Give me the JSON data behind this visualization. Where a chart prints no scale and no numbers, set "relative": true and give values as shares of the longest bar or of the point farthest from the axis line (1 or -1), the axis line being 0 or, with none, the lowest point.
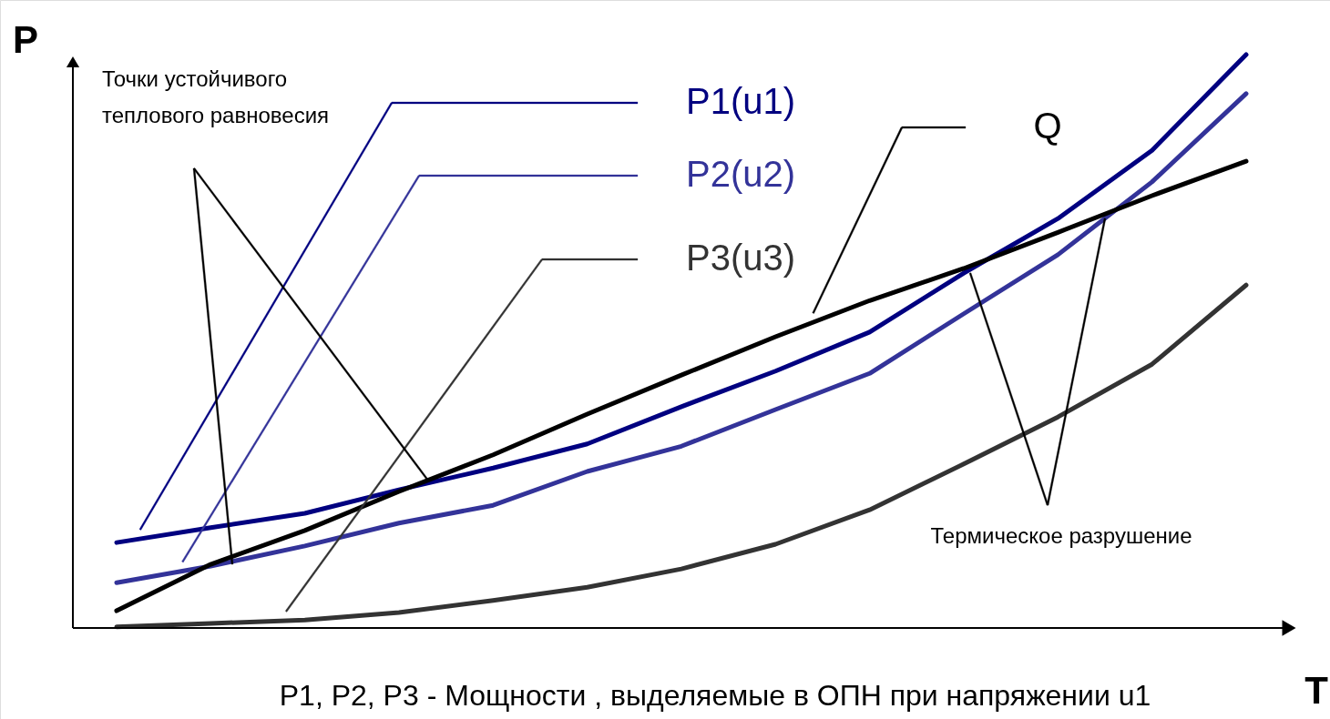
{
  "chart_data": {
    "type": "line",
    "relative": true,
    "xlabel": "T",
    "ylabel": "P",
    "legend": "top",
    "categories": [
      null,
      null,
      null,
      null,
      null,
      null,
      null,
      null,
      null,
      null,
      null,
      null,
      null
    ],
    "series": [
      {
        "name": "P1(u1)",
        "color": "#000080",
        "values": [
          0.149,
          0.175,
          0.2,
          0.241,
          0.279,
          0.321,
          0.386,
          0.448,
          0.516,
          0.619,
          0.714,
          0.833,
          1
        ]
      },
      {
        "name": "P2(u2)",
        "color": "#333399",
        "values": [
          0.079,
          0.108,
          0.143,
          0.183,
          0.214,
          0.273,
          0.317,
          0.381,
          0.444,
          0.548,
          0.651,
          0.778,
          0.932
        ]
      },
      {
        "name": "P3(u3)",
        "color": "#333333",
        "values": [
          0.002,
          0.008,
          0.014,
          0.027,
          0.048,
          0.071,
          0.103,
          0.146,
          0.206,
          0.286,
          0.368,
          0.46,
          0.598
        ]
      },
      {
        "name": "Q",
        "color": "#000000",
        "values": [
          0.03,
          0.111,
          0.17,
          0.238,
          0.302,
          0.373,
          0.441,
          0.508,
          0.571,
          0.627,
          0.69,
          0.754,
          0.814
        ]
      }
    ],
    "annotations": [
      "Точки устойчивого теплового равновесия",
      "Термическое разрушение",
      "Р1, Р2, Р3 - Мощности , выделяемые в ОПН при напряжении u1"
    ]
  }
}
